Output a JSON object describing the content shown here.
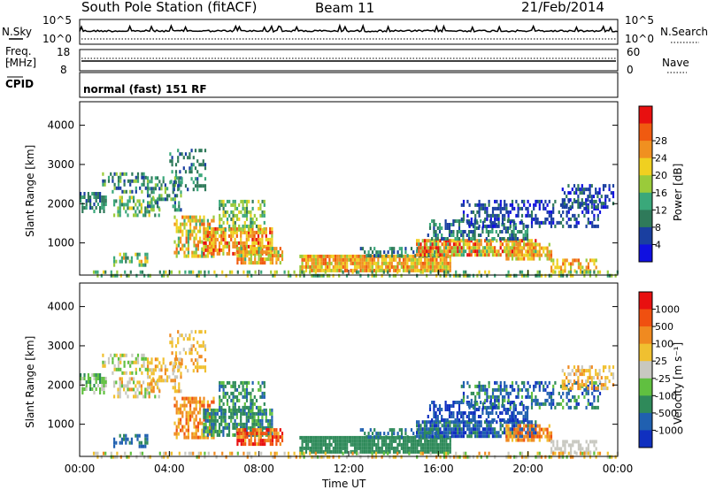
{
  "header": {
    "station": "South Pole Station (fitACF)",
    "beam": "Beam 11",
    "date": "21/Feb/2014"
  },
  "nsky_panel": {
    "left_label": "N.Sky",
    "right_label": "N.Search",
    "left_ticks": [
      "10^5",
      "10^0"
    ],
    "right_ticks": [
      "10^5",
      "10^0"
    ]
  },
  "freq_panel": {
    "left_label_1": "Freq.",
    "left_label_2": "[MHz]",
    "right_label": "Nave",
    "left_ticks": [
      "18",
      "8"
    ],
    "right_ticks": [
      "60",
      "0"
    ]
  },
  "cpid_panel": {
    "label": "CPID",
    "mode": "normal (fast) 151 RF"
  },
  "chart_data": [
    {
      "type": "heatmap",
      "name": "power",
      "ylabel": "Slant Range [km]",
      "ylim": [
        180,
        4600
      ],
      "yticks": [
        1000,
        2000,
        3000,
        4000
      ],
      "xlim": [
        0,
        24
      ],
      "colorbar_label": "Power [dB]",
      "colorbar_ticks": [
        4,
        8,
        12,
        16,
        20,
        24,
        28
      ],
      "colors": [
        "#1010e0",
        "#1a3fa0",
        "#2f7a5a",
        "#3aa87a",
        "#9acb3a",
        "#f0d020",
        "#f09020",
        "#f05a10",
        "#e81010"
      ]
    },
    {
      "type": "heatmap",
      "name": "velocity",
      "ylabel": "Slant Range [km]",
      "ylim": [
        180,
        4600
      ],
      "yticks": [
        1000,
        2000,
        3000,
        4000
      ],
      "xlim": [
        0,
        24
      ],
      "xlabel": "Time UT",
      "xticks": [
        "00:00",
        "04:00",
        "08:00",
        "12:00",
        "16:00",
        "20:00",
        "00:00"
      ],
      "colorbar_label": "Velocity [m s⁻¹]",
      "colorbar_ticks": [
        "1000",
        "500",
        "100",
        "25",
        "-25",
        "-100",
        "-500",
        "-1000"
      ],
      "colors": [
        "#1030c0",
        "#2060b0",
        "#2f8a5a",
        "#60c040",
        "#c8c8c0",
        "#f0c030",
        "#f08a20",
        "#f05010",
        "#e81010"
      ]
    }
  ]
}
